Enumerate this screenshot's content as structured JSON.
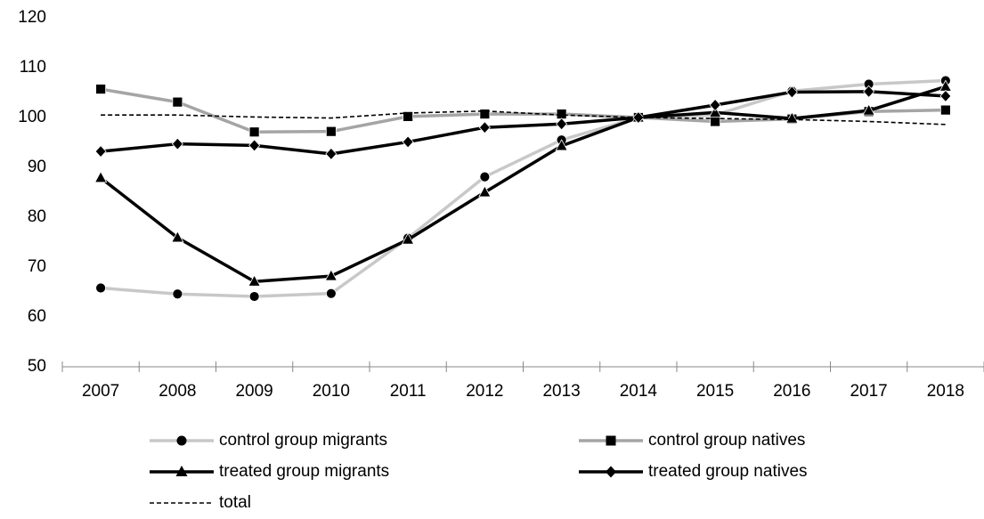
{
  "chart_data": {
    "type": "line",
    "categories": [
      "2007",
      "2008",
      "2009",
      "2010",
      "2011",
      "2012",
      "2013",
      "2014",
      "2015",
      "2016",
      "2017",
      "2018"
    ],
    "ylim": [
      50,
      120
    ],
    "yticks": [
      50,
      60,
      70,
      80,
      90,
      100,
      110,
      120
    ],
    "series": [
      {
        "name": "control group migrants",
        "color": "#c8c8c8",
        "marker": "circle",
        "dash": false,
        "values": [
          65.8,
          64.6,
          64.1,
          64.7,
          75.8,
          88.1,
          95.5,
          100,
          100.5,
          105.3,
          106.7,
          107.4
        ]
      },
      {
        "name": "control group natives",
        "color": "#a5a5a5",
        "marker": "square",
        "dash": false,
        "values": [
          105.7,
          103.1,
          97.1,
          97.2,
          100.2,
          100.7,
          100.7,
          100,
          99.2,
          99.7,
          101.2,
          101.5
        ]
      },
      {
        "name": "treated group migrants",
        "color": "#000000",
        "marker": "triangle",
        "dash": false,
        "values": [
          87.9,
          75.9,
          67.1,
          68.2,
          75.5,
          85.0,
          94.3,
          100,
          101.0,
          99.8,
          101.4,
          106.2
        ]
      },
      {
        "name": "treated group natives",
        "color": "#000000",
        "marker": "diamond",
        "dash": false,
        "values": [
          93.2,
          94.7,
          94.4,
          92.7,
          95.1,
          98.0,
          98.7,
          100,
          102.5,
          105.1,
          105.2,
          104.3
        ]
      },
      {
        "name": "total",
        "color": "#000000",
        "marker": "none",
        "dash": true,
        "values": [
          100.5,
          100.5,
          100.1,
          99.9,
          100.9,
          101.3,
          100.5,
          100,
          99.8,
          99.6,
          99.2,
          98.6
        ]
      }
    ]
  }
}
